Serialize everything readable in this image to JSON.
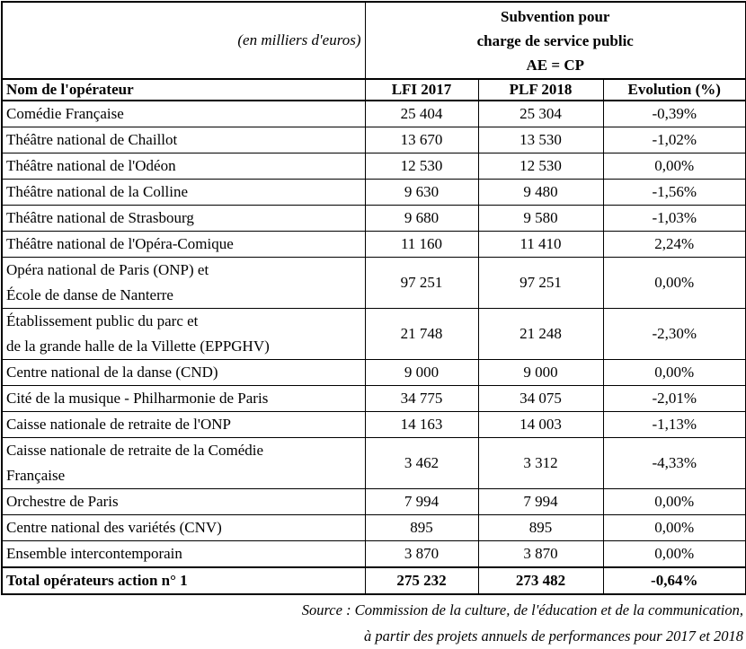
{
  "unit_label": "(en milliers d'euros)",
  "header": {
    "merged_title": "Subvention pour\ncharge de service public\nAE = CP",
    "columns": [
      "Nom de l'opérateur",
      "LFI 2017",
      "PLF 2018",
      "Evolution (%)"
    ]
  },
  "rows": [
    {
      "name": "Comédie Française",
      "lfi": "25 404",
      "plf": "25 304",
      "evolution": "-0,39%"
    },
    {
      "name": "Théâtre national de Chaillot",
      "lfi": "13 670",
      "plf": "13 530",
      "evolution": "-1,02%"
    },
    {
      "name": "Théâtre national de l'Odéon",
      "lfi": "12 530",
      "plf": "12 530",
      "evolution": "0,00%"
    },
    {
      "name": "Théâtre national de la Colline",
      "lfi": "9 630",
      "plf": "9 480",
      "evolution": "-1,56%"
    },
    {
      "name": "Théâtre national de Strasbourg",
      "lfi": "9 680",
      "plf": "9 580",
      "evolution": "-1,03%"
    },
    {
      "name": "Théâtre national de l'Opéra-Comique",
      "lfi": "11 160",
      "plf": "11 410",
      "evolution": "2,24%"
    },
    {
      "name": "Opéra national de Paris (ONP) et\nÉcole de danse de Nanterre",
      "lfi": "97 251",
      "plf": "97 251",
      "evolution": "0,00%"
    },
    {
      "name": "Établissement public du parc et\nde la grande halle de la Villette (EPPGHV)",
      "lfi": "21 748",
      "plf": "21 248",
      "evolution": "-2,30%"
    },
    {
      "name": "Centre national de la danse (CND)",
      "lfi": "9 000",
      "plf": "9 000",
      "evolution": "0,00%"
    },
    {
      "name": "Cité de la musique - Philharmonie de Paris",
      "lfi": "34 775",
      "plf": "34 075",
      "evolution": "-2,01%"
    },
    {
      "name": "Caisse nationale de retraite de l'ONP",
      "lfi": "14 163",
      "plf": "14 003",
      "evolution": "-1,13%"
    },
    {
      "name": "Caisse nationale de retraite de la Comédie\nFrançaise",
      "lfi": "3 462",
      "plf": "3 312",
      "evolution": "-4,33%"
    },
    {
      "name": "Orchestre de Paris",
      "lfi": "7 994",
      "plf": "7 994",
      "evolution": "0,00%"
    },
    {
      "name": "Centre national des variétés (CNV)",
      "lfi": "895",
      "plf": "895",
      "evolution": "0,00%"
    },
    {
      "name": "Ensemble intercontemporain",
      "lfi": "3 870",
      "plf": "3 870",
      "evolution": "0,00%"
    }
  ],
  "total": {
    "name": "Total opérateurs action n° 1",
    "lfi": "275 232",
    "plf": "273 482",
    "evolution": "-0,64%"
  },
  "source": [
    "Source : Commission de la culture, de l'éducation et de la communication,",
    "à partir des projets annuels de performances pour 2017 et 2018"
  ],
  "colors": {
    "text": "#000000",
    "border": "#000000",
    "background": "#ffffff"
  }
}
